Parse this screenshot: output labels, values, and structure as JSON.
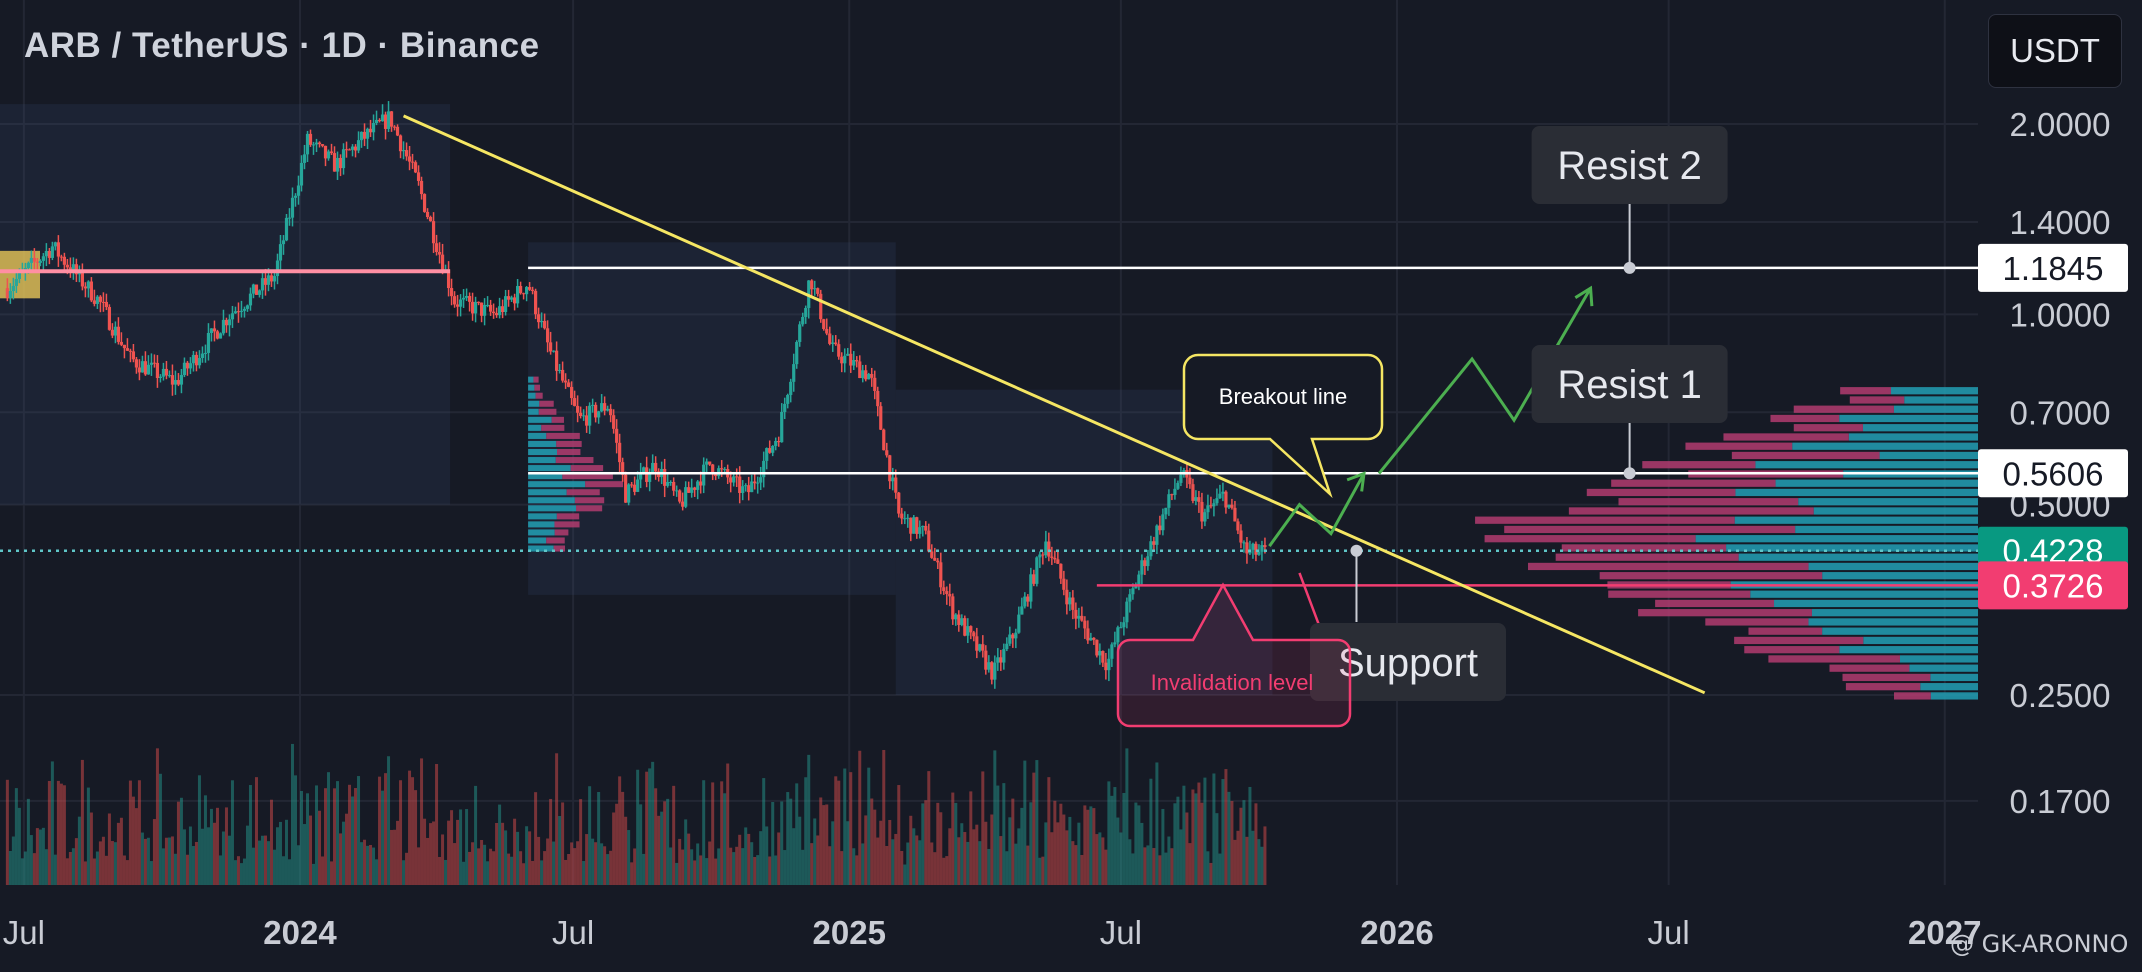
{
  "header": {
    "title": "ARB / TetherUS · 1D · Binance",
    "currency_button": "USDT"
  },
  "watermark": "@ GK-ARONNO",
  "chart_data": {
    "type": "candlestick",
    "symbol": "ARB / TetherUS",
    "timeframe": "1D",
    "exchange": "Binance",
    "y_scale": "log",
    "y_ticks": [
      {
        "value": 2.0,
        "label": "2.0000"
      },
      {
        "value": 1.4,
        "label": "1.4000"
      },
      {
        "value": 1.0,
        "label": "1.0000"
      },
      {
        "value": 0.7,
        "label": "0.7000"
      },
      {
        "value": 0.5,
        "label": "0.5000"
      },
      {
        "value": 0.25,
        "label": "0.2500"
      },
      {
        "value": 0.17,
        "label": "0.1700"
      }
    ],
    "x_ticks": [
      {
        "date": "2023-07-01",
        "label": "Jul",
        "bold": false
      },
      {
        "date": "2024-01-01",
        "label": "2024",
        "bold": true
      },
      {
        "date": "2024-07-01",
        "label": "Jul",
        "bold": false
      },
      {
        "date": "2025-01-01",
        "label": "2025",
        "bold": true
      },
      {
        "date": "2025-07-01",
        "label": "Jul",
        "bold": false
      },
      {
        "date": "2026-01-01",
        "label": "2026",
        "bold": true
      },
      {
        "date": "2026-07-01",
        "label": "Jul",
        "bold": false
      },
      {
        "date": "2027-01-01",
        "label": "2027",
        "bold": true
      }
    ],
    "price_path": [
      [
        "2023-06-20",
        1.1
      ],
      [
        "2023-07-20",
        1.28
      ],
      [
        "2023-08-20",
        1.05
      ],
      [
        "2023-09-10",
        0.85
      ],
      [
        "2023-10-10",
        0.78
      ],
      [
        "2023-11-15",
        1.0
      ],
      [
        "2023-12-15",
        1.15
      ],
      [
        "2024-01-06",
        1.88
      ],
      [
        "2024-01-25",
        1.72
      ],
      [
        "2024-02-12",
        1.9
      ],
      [
        "2024-03-01",
        2.05
      ],
      [
        "2024-03-20",
        1.6
      ],
      [
        "2024-04-13",
        1.05
      ],
      [
        "2024-05-10",
        1.0
      ],
      [
        "2024-06-01",
        1.12
      ],
      [
        "2024-06-15",
        0.88
      ],
      [
        "2024-07-05",
        0.68
      ],
      [
        "2024-07-25",
        0.72
      ],
      [
        "2024-08-05",
        0.52
      ],
      [
        "2024-08-25",
        0.58
      ],
      [
        "2024-09-10",
        0.5
      ],
      [
        "2024-09-30",
        0.58
      ],
      [
        "2024-10-25",
        0.52
      ],
      [
        "2024-11-15",
        0.65
      ],
      [
        "2024-12-06",
        1.15
      ],
      [
        "2024-12-20",
        0.88
      ],
      [
        "2025-01-15",
        0.8
      ],
      [
        "2025-02-03",
        0.48
      ],
      [
        "2025-02-20",
        0.45
      ],
      [
        "2025-03-11",
        0.34
      ],
      [
        "2025-04-07",
        0.27
      ],
      [
        "2025-04-20",
        0.31
      ],
      [
        "2025-05-12",
        0.44
      ],
      [
        "2025-05-30",
        0.34
      ],
      [
        "2025-06-22",
        0.28
      ],
      [
        "2025-07-15",
        0.4
      ],
      [
        "2025-08-10",
        0.56
      ],
      [
        "2025-08-25",
        0.48
      ],
      [
        "2025-09-08",
        0.52
      ],
      [
        "2025-09-22",
        0.42
      ],
      [
        "2025-10-05",
        0.42
      ]
    ],
    "horizontal_levels": [
      {
        "name": "Resist 2",
        "price": 1.1845,
        "label": "1.1845"
      },
      {
        "name": "Resist 1",
        "price": 0.5606,
        "label": "0.5606"
      },
      {
        "name": "Current price",
        "price": 0.4228,
        "label": "0.4228"
      },
      {
        "name": "Invalidation level",
        "price": 0.3726,
        "label": "0.3726"
      }
    ],
    "trendline": {
      "start": [
        "2024-03-10",
        2.06
      ],
      "end": [
        "2026-07-25",
        0.252
      ]
    },
    "annotations": {
      "resist2": "Resist 2",
      "resist1": "Resist 1",
      "support": "Support",
      "breakout": "Breakout line",
      "invalidation": "Invalidation level"
    },
    "colors": {
      "background": "#161a25",
      "up": "#26a69a",
      "down": "#ef5350",
      "trendline": "#f5e663",
      "projection": "#4caf50",
      "invalidation": "#f23d71",
      "price_tag": "#089981",
      "vp_up": "#22a0b5",
      "vp_down": "#b13c70",
      "level": "#ffffff"
    }
  }
}
